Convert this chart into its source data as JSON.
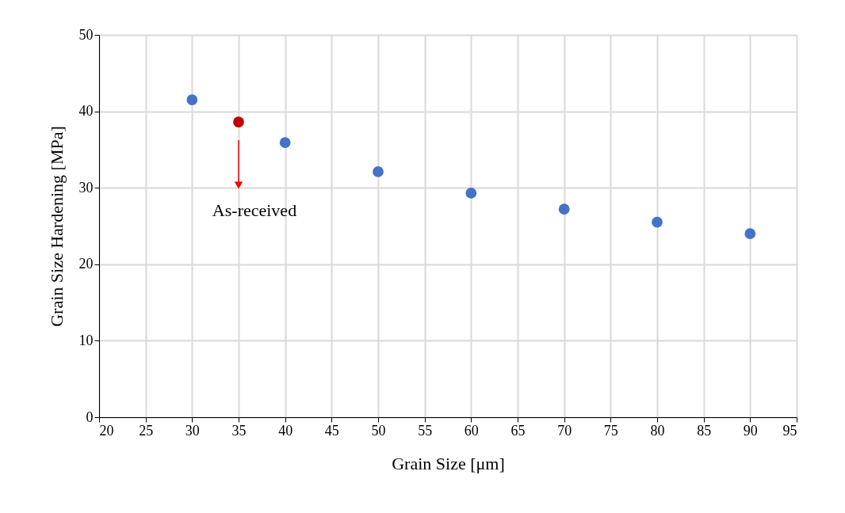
{
  "chart_data": {
    "type": "scatter",
    "xlabel": "Grain Size [μm]",
    "ylabel": "Grain Size Hardening [MPa]",
    "series": [
      {
        "color": "#4472c4",
        "x": [
          30,
          40,
          50,
          60,
          70,
          80,
          90
        ],
        "values": [
          41.5,
          35.9,
          32.1,
          29.3,
          27.2,
          25.5,
          24.0
        ]
      },
      {
        "color": "#c00000",
        "x": [
          35
        ],
        "values": [
          38.6
        ]
      }
    ],
    "xlim": [
      20,
      95
    ],
    "xticks": [
      20,
      25,
      30,
      35,
      40,
      45,
      50,
      55,
      60,
      65,
      70,
      75,
      80,
      85,
      90,
      95
    ],
    "ylim": [
      0,
      50
    ],
    "yticks": [
      0,
      10,
      20,
      30,
      40,
      50
    ],
    "grid": true,
    "marker": "circle",
    "legend": false,
    "annotations": [
      "As-received"
    ]
  }
}
